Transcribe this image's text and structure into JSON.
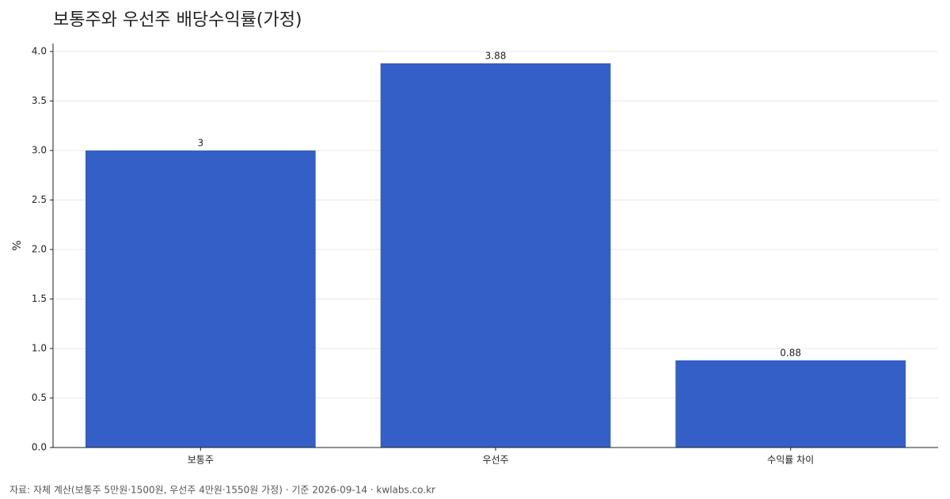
{
  "chart_data": {
    "type": "bar",
    "title": "보통주와 우선주 배당수익률(가정)",
    "y_label": "%",
    "categories": [
      "보통주",
      "우선주",
      "수익률 차이"
    ],
    "values": [
      3,
      3.88,
      0.88
    ],
    "color": "#335fc6",
    "ylim": [
      0,
      4.08
    ],
    "yticks": [
      {
        "value": 0,
        "label": "0.0"
      },
      {
        "value": 0.5,
        "label": "0.5"
      },
      {
        "value": 1,
        "label": "1.0"
      },
      {
        "value": 1.5,
        "label": "1.5"
      },
      {
        "value": 2,
        "label": "2.0"
      },
      {
        "value": 2.5,
        "label": "2.5"
      },
      {
        "value": 3,
        "label": "3.0"
      },
      {
        "value": 3.5,
        "label": "3.5"
      },
      {
        "value": 4,
        "label": "4.0"
      }
    ],
    "grid": true,
    "source": "자료: 자체 계산(보통주 5만원·1500원, 우선주 4만원·1550원 가정) · 기준 2026-09-14 · kwlabs.co.kr"
  }
}
